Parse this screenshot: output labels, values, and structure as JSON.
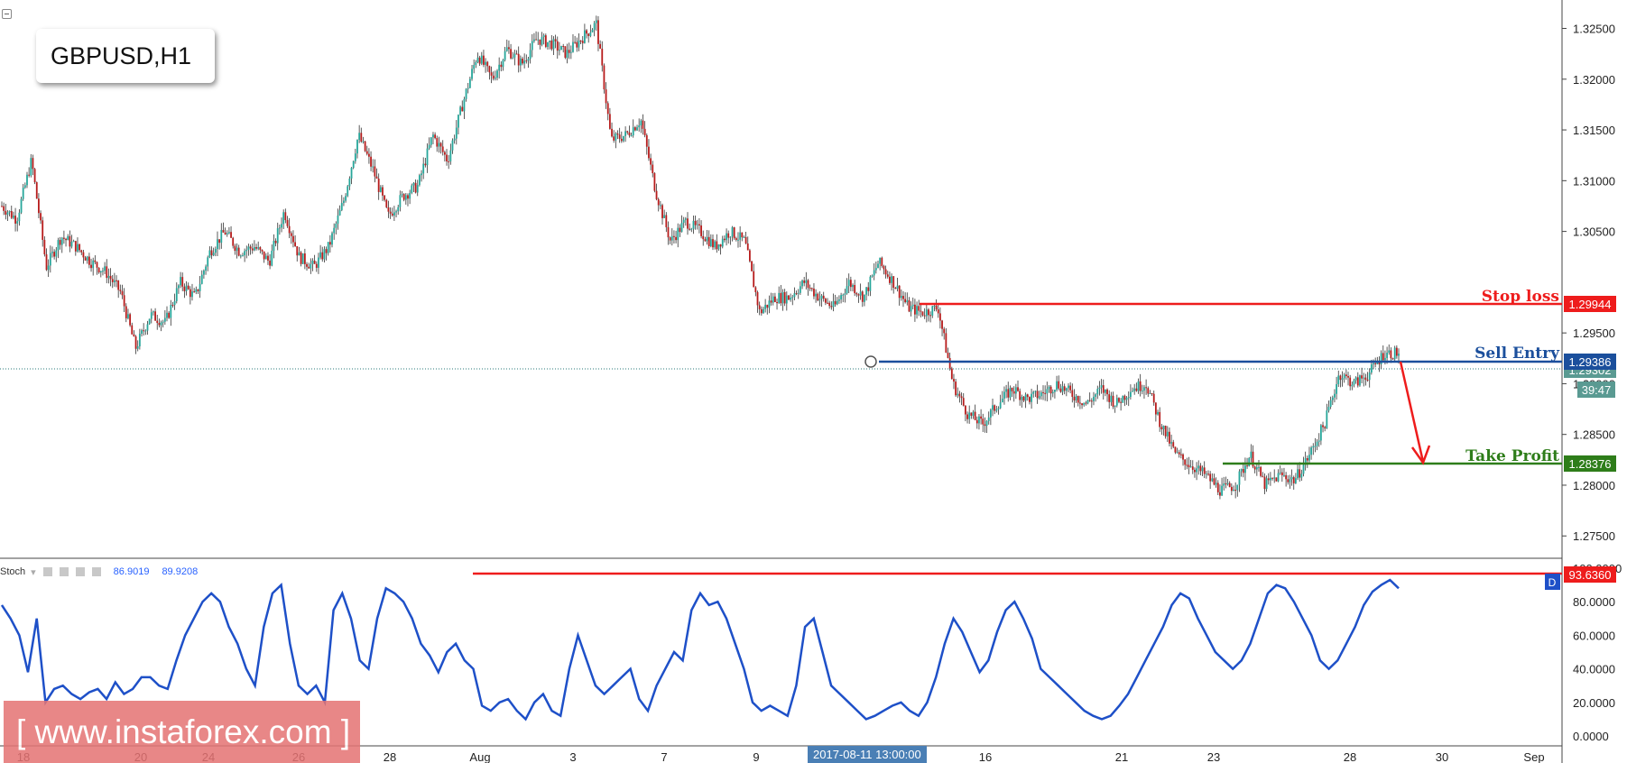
{
  "chart": {
    "symbol_label": "GBPUSD,H1",
    "watermark": "[ www.instaforex.com ]",
    "crosshair_time": "2017-08-11 13:00:00",
    "countdown": "39:47",
    "colors": {
      "up": "#26a69a",
      "down": "#b71c1c",
      "stop": "#ee1c1c",
      "entry": "#1b4f9c",
      "profit": "#2e7d1a",
      "stoch": "#1e50c8"
    }
  },
  "stochastic": {
    "name": "Stoch",
    "k_value": "86.9019",
    "d_value": "89.9208",
    "level_badge": "93.6360",
    "d_tag": "D"
  },
  "chart_data": [
    {
      "type": "line",
      "title": "GBPUSD,H1",
      "xlabel": "",
      "ylabel": "",
      "x_ticks": [
        "18",
        "20",
        "24",
        "26",
        "28",
        "Aug",
        "3",
        "7",
        "9",
        "16",
        "21",
        "23",
        "28",
        "30",
        "Sep"
      ],
      "y_ticks": [
        "1.32500",
        "1.32000",
        "1.31500",
        "1.31000",
        "1.30500",
        "1.29500",
        "1.29000",
        "1.28500",
        "1.28000",
        "1.27500"
      ],
      "ylim": [
        1.2728,
        1.3278
      ],
      "grid": false,
      "series": [
        {
          "values": [
            1.3075,
            1.3062,
            1.312,
            1.3015,
            1.3045,
            1.3035,
            1.302,
            1.301,
            1.299,
            1.2935,
            1.2968,
            1.296,
            1.3,
            1.2985,
            1.303,
            1.305,
            1.303,
            1.3035,
            1.302,
            1.307,
            1.3025,
            1.3015,
            1.3035,
            1.308,
            1.3145,
            1.311,
            1.3065,
            1.3085,
            1.3095,
            1.3145,
            1.312,
            1.3175,
            1.3225,
            1.32,
            1.323,
            1.3215,
            1.324,
            1.3235,
            1.3225,
            1.324,
            1.3255,
            1.314,
            1.3145,
            1.316,
            1.309,
            1.304,
            1.306,
            1.305,
            1.3035,
            1.305,
            1.304,
            1.297,
            1.2985,
            1.2985,
            1.3,
            1.2985,
            1.2975,
            1.3,
            1.2985,
            1.302,
            1.3,
            1.2975,
            1.297,
            1.2975,
            1.29,
            1.287,
            1.286,
            1.288,
            1.2895,
            1.2885,
            1.289,
            1.29,
            1.289,
            1.288,
            1.2895,
            1.288,
            1.2895,
            1.29,
            1.286,
            1.283,
            1.282,
            1.281,
            1.2795,
            1.28,
            1.283,
            1.28,
            1.281,
            1.2805,
            1.283,
            1.286,
            1.291,
            1.29,
            1.291,
            1.293,
            1.293
          ]
        }
      ]
    },
    {
      "type": "line",
      "title": "",
      "ylim": [
        0,
        100
      ],
      "y_ticks": [
        "100.0000",
        "80.0000",
        "60.0000",
        "40.0000",
        "20.0000",
        "0.0000"
      ],
      "series": [
        {
          "values": [
            78,
            70,
            60,
            38,
            70,
            20,
            28,
            30,
            25,
            22,
            26,
            28,
            22,
            32,
            25,
            28,
            35,
            35,
            30,
            28,
            45,
            60,
            70,
            80,
            85,
            80,
            65,
            55,
            40,
            30,
            65,
            85,
            90,
            55,
            30,
            25,
            30,
            20,
            75,
            85,
            70,
            45,
            40,
            70,
            88,
            85,
            80,
            70,
            55,
            48,
            38,
            50,
            55,
            45,
            40,
            18,
            15,
            20,
            22,
            15,
            10,
            20,
            25,
            15,
            12,
            40,
            60,
            45,
            30,
            25,
            30,
            35,
            40,
            22,
            15,
            30,
            40,
            50,
            45,
            75,
            85,
            78,
            80,
            70,
            55,
            40,
            20,
            15,
            18,
            15,
            12,
            30,
            65,
            70,
            50,
            30,
            25,
            20,
            15,
            10,
            12,
            15,
            18,
            20,
            15,
            12,
            20,
            35,
            55,
            70,
            62,
            50,
            38,
            45,
            62,
            75,
            80,
            70,
            58,
            40,
            35,
            30,
            25,
            20,
            15,
            12,
            10,
            12,
            18,
            25,
            35,
            45,
            55,
            65,
            78,
            85,
            82,
            70,
            60,
            50,
            45,
            40,
            45,
            55,
            70,
            85,
            90,
            88,
            80,
            70,
            60,
            45,
            40,
            45,
            55,
            65,
            78,
            86,
            90,
            93,
            88
          ]
        }
      ]
    }
  ],
  "price_axis": {
    "stop_loss": {
      "label": "Stop loss",
      "price": "1.29944"
    },
    "sell_entry": {
      "label": "Sell Entry",
      "price": "1.29386",
      "hidden_price": "1.29302"
    },
    "take_profit": {
      "label": "Take Profit",
      "price": "1.28376"
    }
  }
}
